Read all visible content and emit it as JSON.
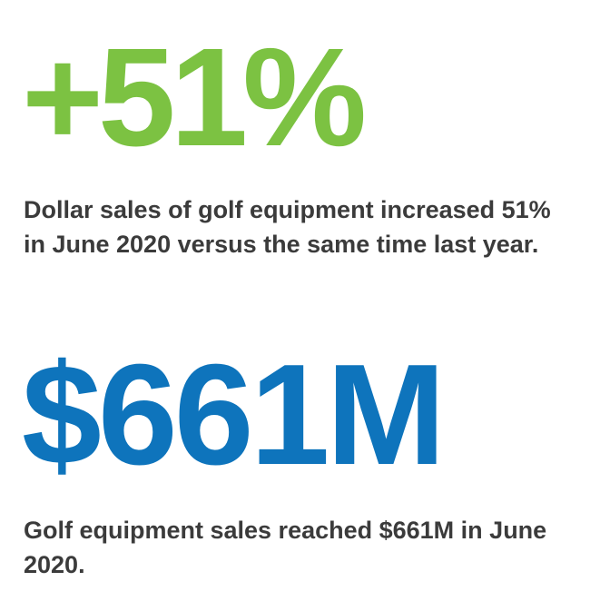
{
  "stats": [
    {
      "value": "+51%",
      "color": "#7cc242",
      "description": "Dollar sales of golf equipment increased 51% in June 2020 versus the same time last year."
    },
    {
      "value": "$661M",
      "color": "#0e74bc",
      "description": "Golf equipment sales reached $661M in June 2020."
    }
  ]
}
